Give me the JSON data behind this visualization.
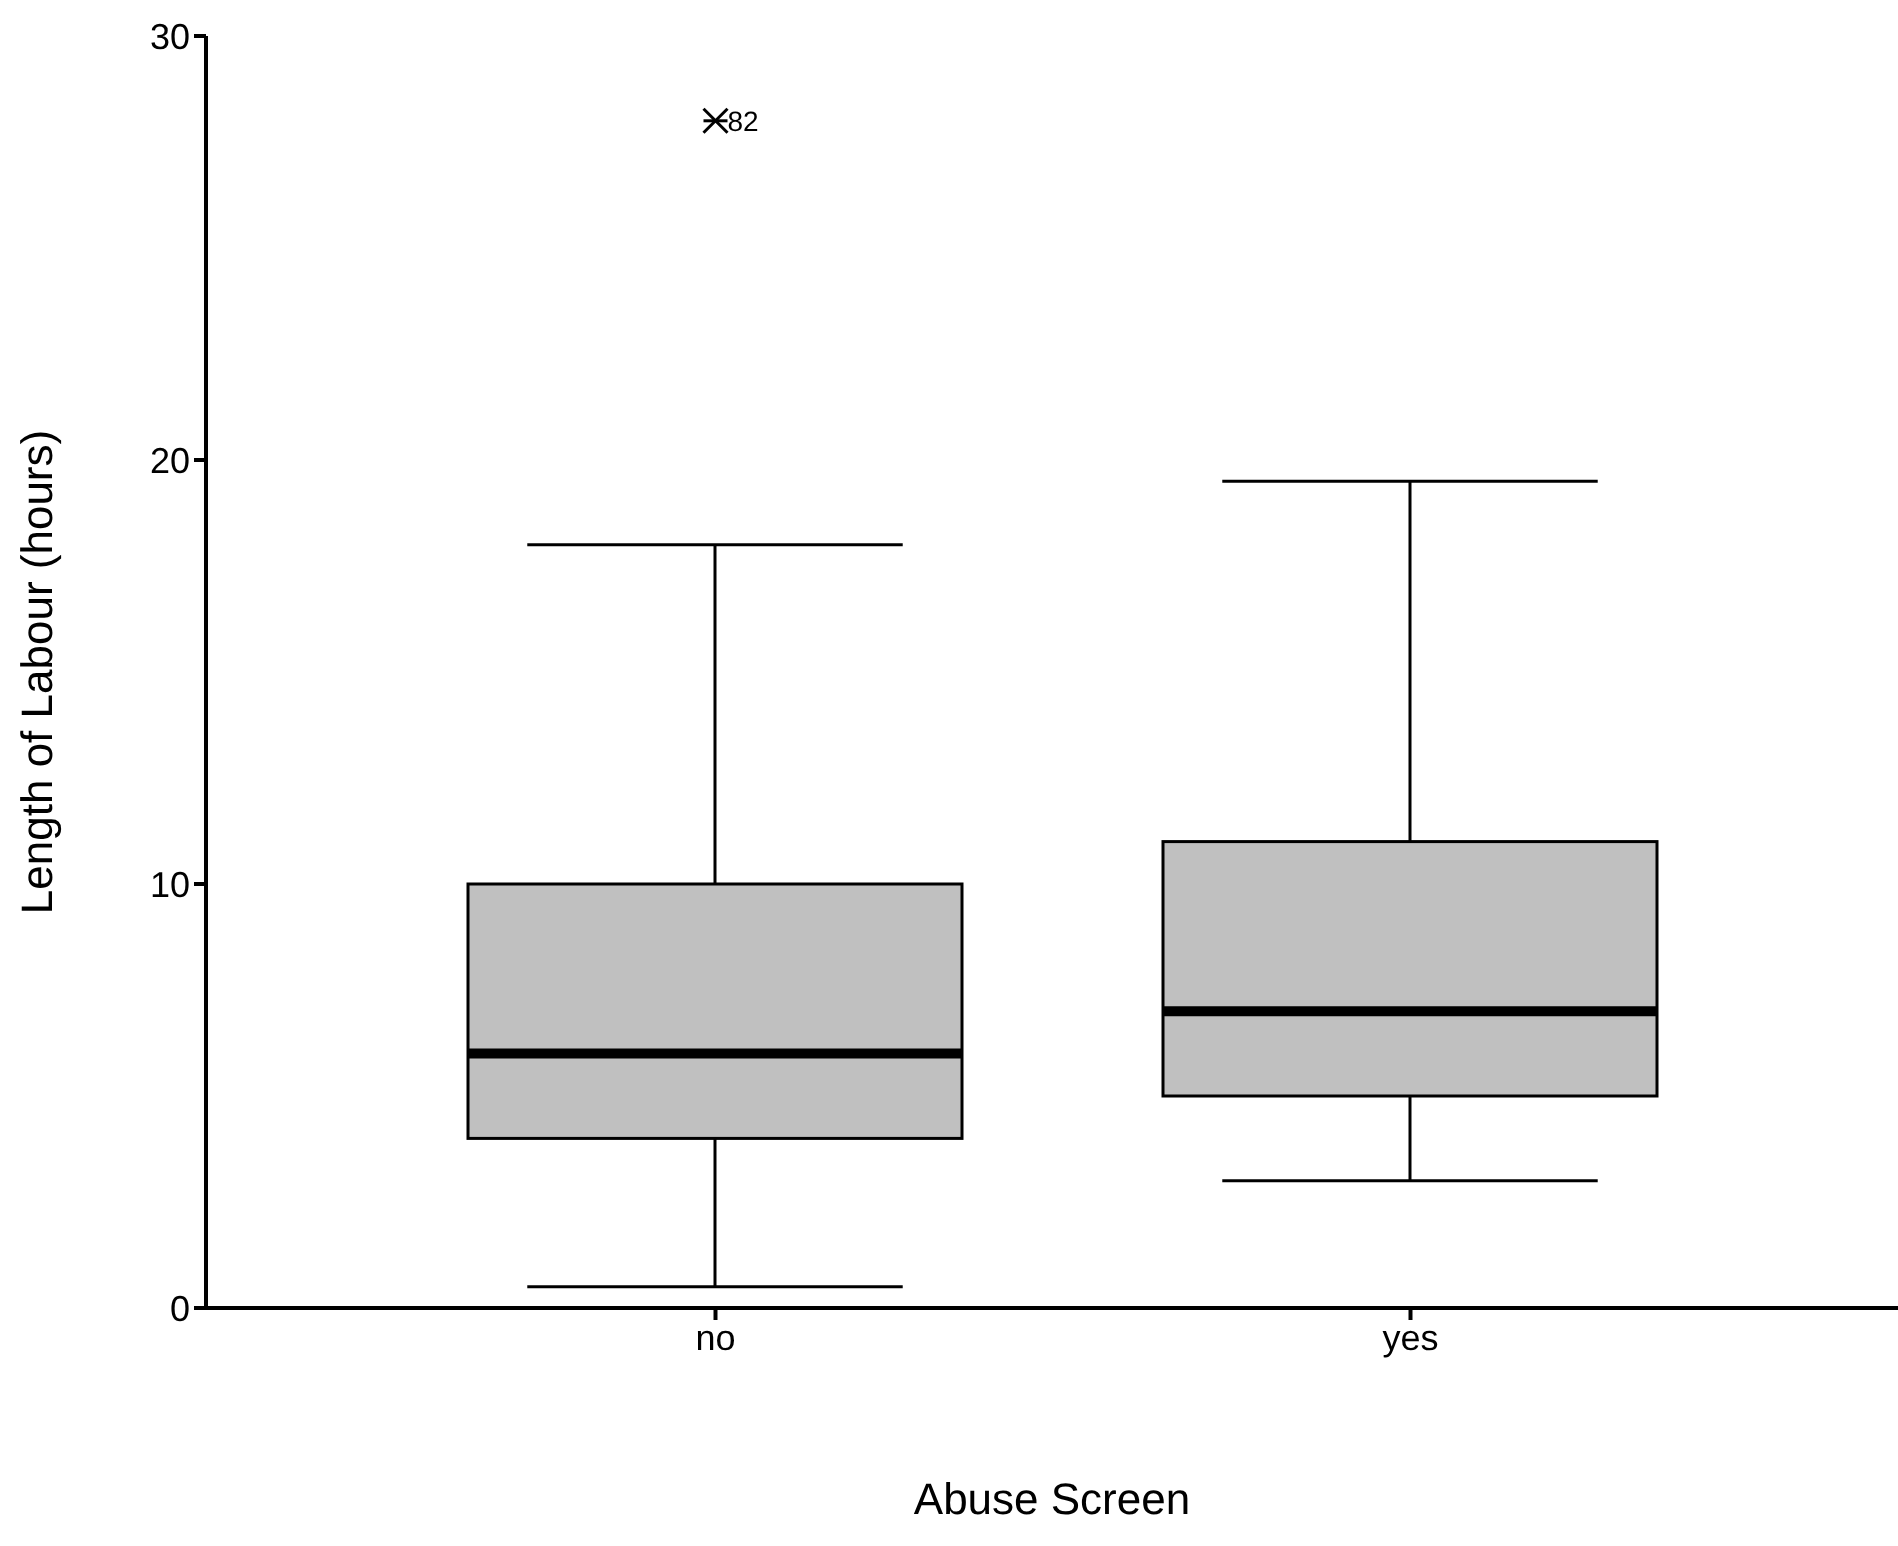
{
  "chart_data": {
    "type": "box",
    "xlabel": "Abuse Screen",
    "ylabel": "Length of Labour (hours)",
    "categories": [
      "no",
      "yes"
    ],
    "boxes": [
      {
        "low": 0.5,
        "q1": 4,
        "median": 6,
        "q3": 10,
        "high": 18,
        "outliers": [
          28
        ]
      },
      {
        "low": 3,
        "q1": 5,
        "median": 7,
        "q3": 11,
        "high": 19.5
      }
    ],
    "color": "#c0c0c0",
    "ylim": [
      0,
      30
    ],
    "yticks": [
      0,
      10,
      20,
      30
    ],
    "grid": false,
    "legend": false,
    "marker": "cross",
    "annotations": [
      "82"
    ]
  }
}
